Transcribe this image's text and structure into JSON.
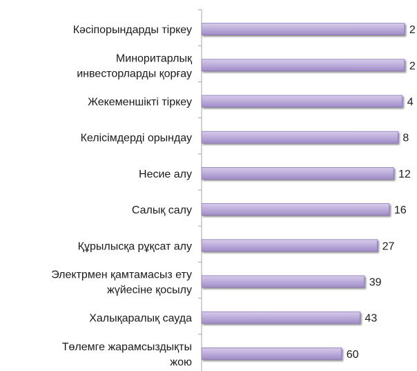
{
  "chart_data": {
    "type": "bar",
    "orientation": "horizontal",
    "categories": [
      [
        "Кәсіпорындарды тіркеу"
      ],
      [
        "Миноритарлық",
        "инвесторларды қорғау"
      ],
      [
        "Жекеменшікті тіркеу"
      ],
      [
        "Келісімдерді орындау"
      ],
      [
        "Несие алу"
      ],
      [
        "Салық салу"
      ],
      [
        "Құрылысқа рұқсат алу"
      ],
      [
        "Электрмен қамтамасыз ету",
        "жүйесіне қосылу"
      ],
      [
        "Халықаралық сауда"
      ],
      [
        "Төлемге жарамсыздықты",
        "жою"
      ]
    ],
    "values": [
      2,
      2,
      4,
      8,
      12,
      16,
      27,
      39,
      43,
      60
    ],
    "value_labels": [
      "2",
      "2",
      "4",
      "8",
      "12",
      "16",
      "27",
      "39",
      "43",
      "60"
    ],
    "xlim": [
      0,
      189
    ],
    "x_direction": "reversed",
    "title": "",
    "xlabel": "",
    "ylabel": "",
    "grid": false,
    "legend": "none",
    "colors": {
      "bar_fill_top": "#d7ccea",
      "bar_fill_mid": "#b9a9d9",
      "bar_fill_bottom": "#9f8cc6",
      "bar_stroke": "#8878b4",
      "shadow": "#b3b3b3",
      "axis": "#a6a6a6"
    }
  }
}
